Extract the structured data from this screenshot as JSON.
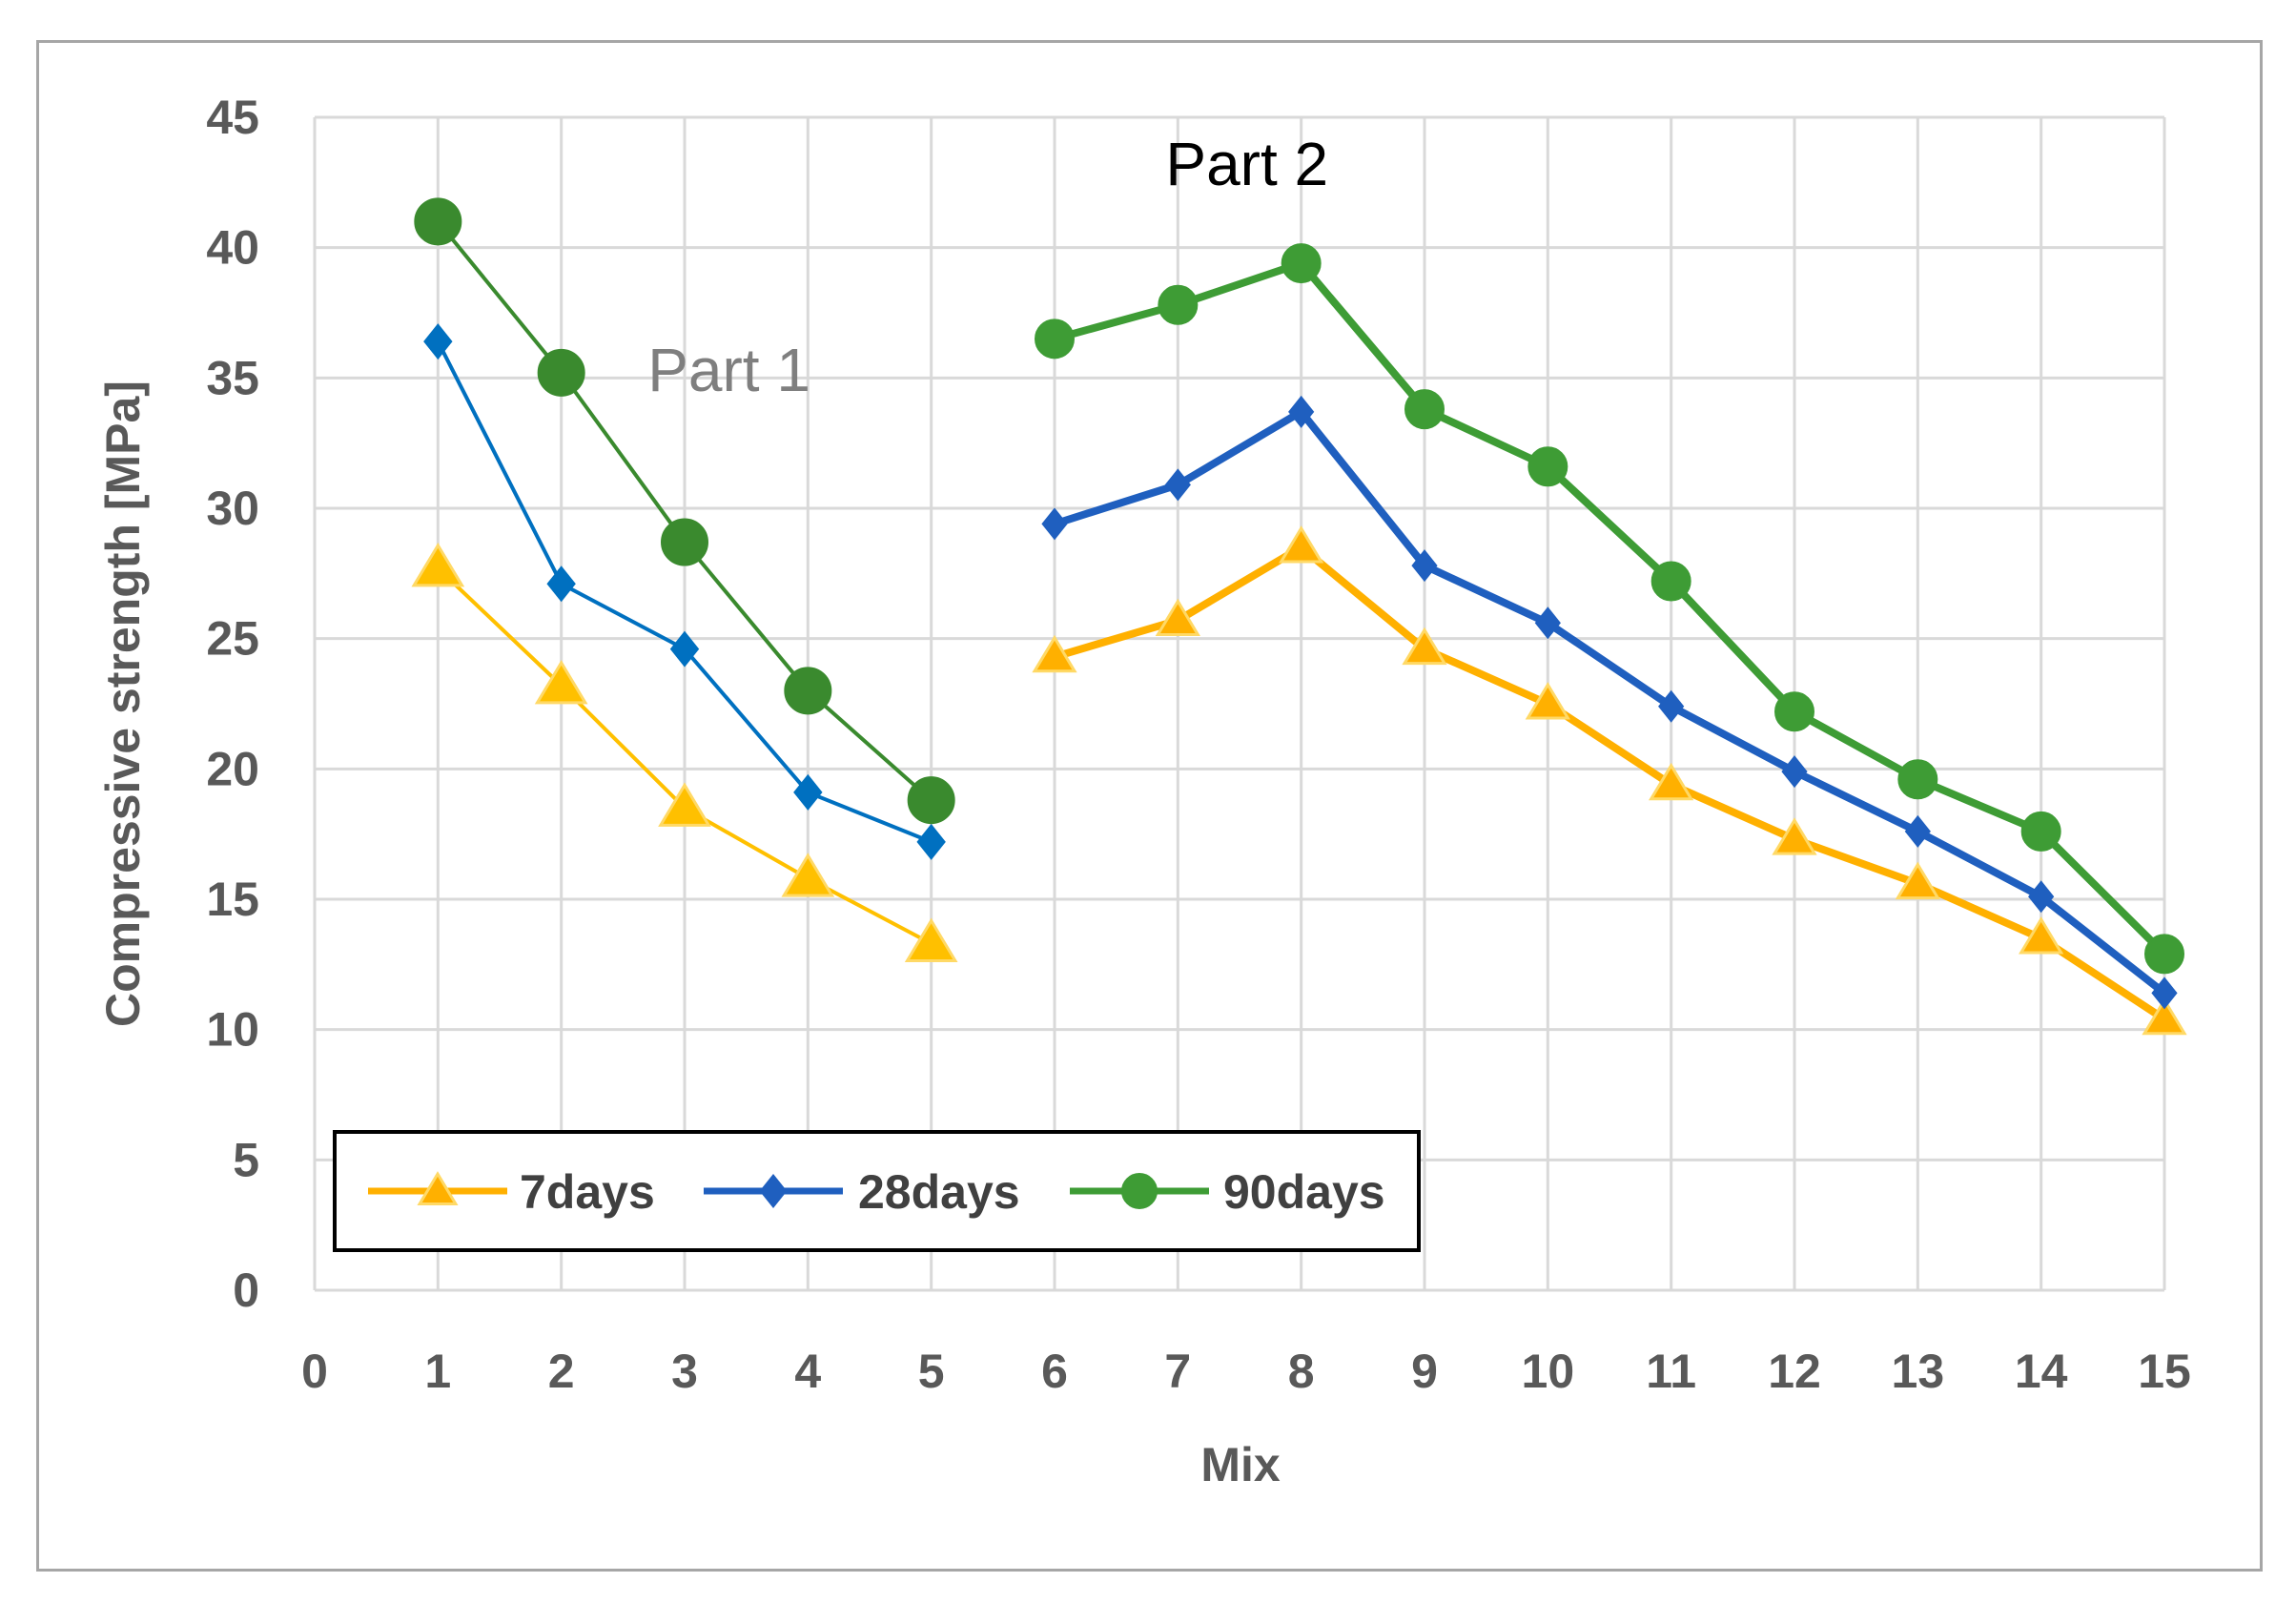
{
  "chart_data": {
    "type": "line",
    "title": "",
    "xlabel": "Mix",
    "ylabel": "Compressive strength [MPa]",
    "xlim": [
      0,
      15
    ],
    "ylim": [
      0,
      45
    ],
    "xticks": [
      0,
      1,
      2,
      3,
      4,
      5,
      6,
      7,
      8,
      9,
      10,
      11,
      12,
      13,
      14,
      15
    ],
    "yticks": [
      0,
      5,
      10,
      15,
      20,
      25,
      30,
      35,
      40,
      45
    ],
    "grid": true,
    "legend_position": "bottom-left",
    "annotations": [
      {
        "text": "Part 1",
        "x": 2.7,
        "y": 34.5,
        "color": "#7f7f7f"
      },
      {
        "text": "Part 2",
        "x": 6.9,
        "y": 42.4,
        "color": "#000000"
      }
    ],
    "series": [
      {
        "name": "7days",
        "color": "#ffc000",
        "color_part2": "#ffb000",
        "marker": "triangle",
        "part1": {
          "x": [
            1,
            2,
            3,
            4,
            5
          ],
          "y": [
            27.7,
            23.2,
            18.5,
            15.8,
            13.3
          ]
        },
        "part2": {
          "x": [
            6,
            7,
            8,
            9,
            10,
            11,
            12,
            13,
            14,
            15
          ],
          "y": [
            24.3,
            25.7,
            28.5,
            24.6,
            22.5,
            19.4,
            17.3,
            15.6,
            13.5,
            10.4
          ]
        }
      },
      {
        "name": "28days",
        "color": "#0070c0",
        "color_part2": "#1f5fbf",
        "marker": "diamond",
        "part1": {
          "x": [
            1,
            2,
            3,
            4,
            5
          ],
          "y": [
            36.4,
            27.1,
            24.6,
            19.1,
            17.2
          ]
        },
        "part2": {
          "x": [
            6,
            7,
            8,
            9,
            10,
            11,
            12,
            13,
            14,
            15
          ],
          "y": [
            29.4,
            30.9,
            33.7,
            27.8,
            25.6,
            22.4,
            19.9,
            17.6,
            15.1,
            11.4
          ]
        }
      },
      {
        "name": "90days",
        "color": "#3a8a2e",
        "color_part2": "#3e9c35",
        "marker": "circle",
        "part1": {
          "x": [
            1,
            2,
            3,
            4,
            5
          ],
          "y": [
            41.0,
            35.2,
            28.7,
            23.0,
            18.8
          ]
        },
        "part2": {
          "x": [
            6,
            7,
            8,
            9,
            10,
            11,
            12,
            13,
            14,
            15
          ],
          "y": [
            36.5,
            37.8,
            39.4,
            33.8,
            31.6,
            27.2,
            22.2,
            19.6,
            17.6,
            12.9
          ]
        }
      }
    ]
  }
}
